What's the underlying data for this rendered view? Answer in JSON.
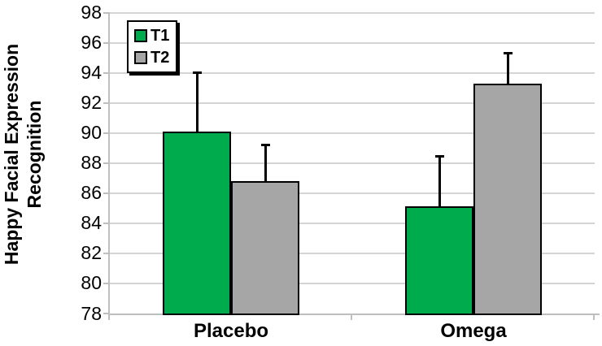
{
  "chart_data": {
    "type": "bar",
    "title": "",
    "ylabel": "Happy Facial Expression Recognition",
    "ylabel_lines": [
      "Happy Facial Expression",
      "Recognition"
    ],
    "xlabel": "",
    "categories": [
      "Placebo",
      "Omega"
    ],
    "series": [
      {
        "name": "T1",
        "color": "#00AB4E",
        "values": [
          90.1,
          85.1
        ],
        "errors_plus": [
          4.0,
          3.4
        ]
      },
      {
        "name": "T2",
        "color": "#A6A6A6",
        "values": [
          86.8,
          93.3
        ],
        "errors_plus": [
          2.5,
          2.1
        ]
      }
    ],
    "ylim": [
      78,
      98
    ],
    "ytick_step": 2,
    "grid": true,
    "legend_position": "top-left-inside",
    "colors": {
      "bar_border": "#000000",
      "error_bar": "#000000",
      "gridline": "#d4d4d4",
      "axis": "#bfbfbf",
      "background": "#ffffff",
      "text": "#000000"
    }
  }
}
